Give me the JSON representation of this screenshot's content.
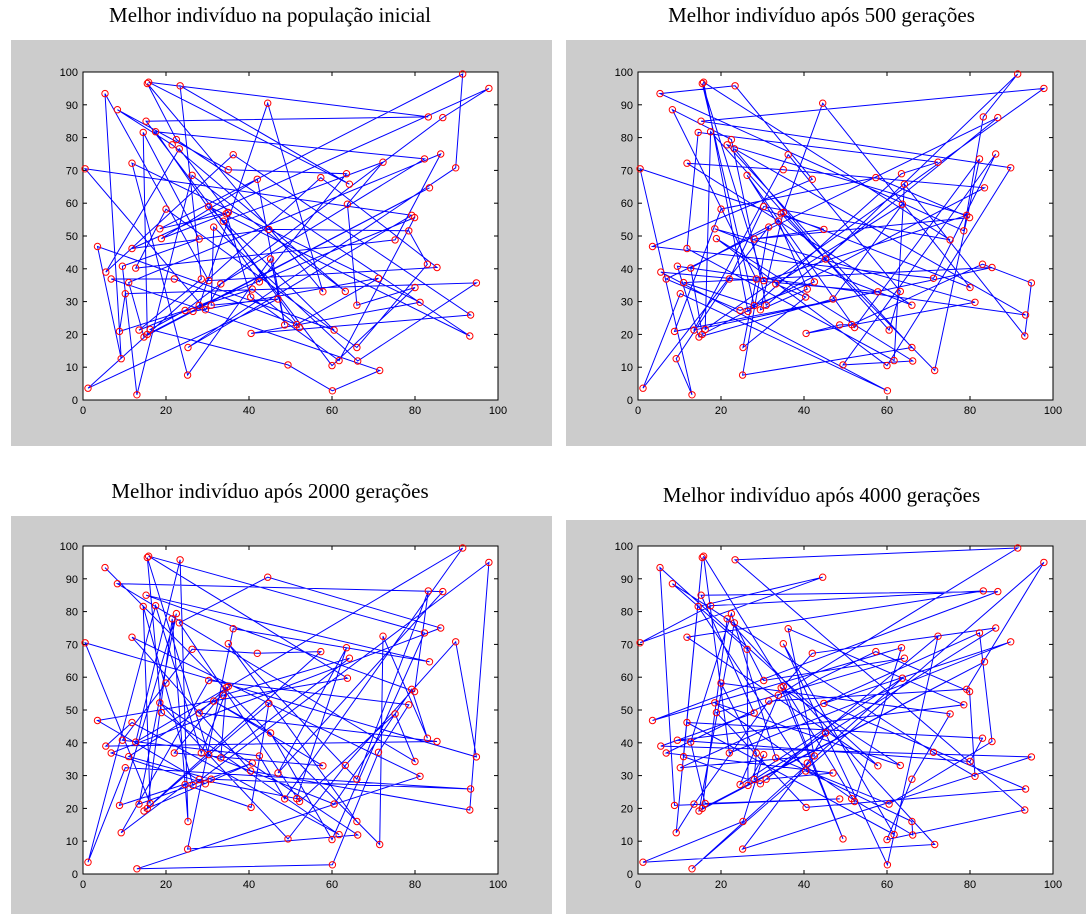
{
  "chart_data": [
    {
      "type": "line",
      "title": "Melhor indivíduo na população inicial",
      "xlim": [
        0,
        100
      ],
      "ylim": [
        0,
        100
      ],
      "xticks": [
        "0",
        "20",
        "40",
        "60",
        "80",
        "100"
      ],
      "yticks": [
        "0",
        "10",
        "20",
        "30",
        "40",
        "50",
        "60",
        "70",
        "80",
        "90",
        "100"
      ],
      "grid": false,
      "line_color": "#0000ff",
      "marker_color": "#ff0000",
      "tour_order": [
        0,
        52,
        38,
        21,
        11,
        86,
        31,
        63,
        72,
        8,
        89,
        30,
        14,
        55,
        45,
        70,
        28,
        91,
        24,
        2,
        80,
        49,
        36,
        19,
        60,
        79,
        20,
        46,
        98,
        32,
        53,
        65,
        84,
        27,
        43,
        57,
        7,
        96,
        48,
        71,
        4,
        82,
        26,
        56,
        42,
        15,
        76,
        85,
        99,
        5,
        37,
        88,
        61,
        9,
        12,
        50,
        67,
        94,
        41,
        90,
        73,
        35,
        6,
        22,
        83,
        81,
        44,
        92,
        87,
        59,
        95,
        13,
        77,
        17,
        47,
        29,
        97,
        40,
        66,
        54,
        18,
        58,
        51,
        25,
        33,
        68,
        10,
        78,
        23,
        62,
        75,
        39,
        64,
        69,
        3,
        1,
        93,
        16,
        34,
        74
      ]
    },
    {
      "type": "line",
      "title": "Melhor indivíduo após 500 gerações",
      "xlim": [
        0,
        100
      ],
      "ylim": [
        0,
        100
      ],
      "xticks": [
        "0",
        "20",
        "40",
        "60",
        "80",
        "100"
      ],
      "yticks": [
        "0",
        "10",
        "20",
        "30",
        "40",
        "50",
        "60",
        "70",
        "80",
        "90",
        "100"
      ],
      "grid": false,
      "line_color": "#0000ff",
      "marker_color": "#ff0000",
      "tour_order": [
        0,
        23,
        37,
        22,
        9,
        54,
        46,
        73,
        3,
        43,
        68,
        77,
        49,
        20,
        12,
        4,
        29,
        6,
        28,
        30,
        14,
        86,
        84,
        55,
        69,
        25,
        33,
        66,
        57,
        96,
        74,
        31,
        41,
        65,
        2,
        81,
        16,
        7,
        62,
        1,
        59,
        83,
        95,
        56,
        50,
        64,
        60,
        38,
        80,
        34,
        27,
        42,
        51,
        78,
        89,
        63,
        70,
        11,
        98,
        47,
        5,
        79,
        91,
        88,
        35,
        18,
        92,
        82,
        24,
        53,
        21,
        32,
        13,
        87,
        93,
        61,
        75,
        8,
        19,
        85,
        58,
        90,
        67,
        99,
        52,
        39,
        97,
        45,
        26,
        15,
        71,
        44,
        72,
        94,
        48,
        40,
        76,
        36,
        10,
        17
      ]
    },
    {
      "type": "line",
      "title": "Melhor indivíduo após 2000 gerações",
      "xlim": [
        0,
        100
      ],
      "ylim": [
        0,
        100
      ],
      "xticks": [
        "0",
        "20",
        "40",
        "60",
        "80",
        "100"
      ],
      "yticks": [
        "0",
        "10",
        "20",
        "30",
        "40",
        "50",
        "60",
        "70",
        "80",
        "90",
        "100"
      ],
      "grid": false,
      "line_color": "#0000ff",
      "marker_color": "#ff0000",
      "tour_order": [
        0,
        87,
        68,
        73,
        13,
        12,
        80,
        55,
        14,
        23,
        44,
        35,
        47,
        9,
        37,
        59,
        30,
        17,
        51,
        76,
        91,
        62,
        40,
        78,
        1,
        28,
        11,
        66,
        79,
        38,
        39,
        33,
        96,
        19,
        50,
        48,
        90,
        6,
        3,
        42,
        95,
        64,
        65,
        54,
        7,
        63,
        41,
        18,
        83,
        74,
        88,
        27,
        46,
        16,
        53,
        70,
        26,
        94,
        22,
        31,
        60,
        93,
        15,
        71,
        89,
        56,
        58,
        57,
        20,
        34,
        2,
        10,
        85,
        72,
        77,
        49,
        24,
        67,
        99,
        61,
        52,
        29,
        43,
        81,
        5,
        97,
        69,
        84,
        98,
        36,
        32,
        25,
        8,
        45,
        82,
        86,
        92,
        75,
        21,
        4
      ]
    },
    {
      "type": "line",
      "title": "Melhor indivíduo após 4000 gerações",
      "xlim": [
        0,
        100
      ],
      "ylim": [
        0,
        100
      ],
      "xticks": [
        "0",
        "20",
        "40",
        "60",
        "80",
        "100"
      ],
      "yticks": [
        "0",
        "10",
        "20",
        "30",
        "40",
        "50",
        "60",
        "70",
        "80",
        "90",
        "100"
      ],
      "grid": false,
      "line_color": "#0000ff",
      "marker_color": "#ff0000",
      "tour_order": [
        0,
        41,
        68,
        80,
        97,
        82,
        6,
        86,
        75,
        2,
        92,
        31,
        91,
        18,
        90,
        60,
        40,
        54,
        84,
        53,
        12,
        79,
        11,
        57,
        59,
        27,
        23,
        13,
        52,
        26,
        19,
        37,
        67,
        58,
        74,
        70,
        96,
        45,
        4,
        72,
        10,
        32,
        95,
        88,
        3,
        7,
        46,
        22,
        21,
        17,
        89,
        30,
        24,
        20,
        9,
        63,
        51,
        25,
        33,
        39,
        81,
        15,
        38,
        99,
        73,
        62,
        64,
        35,
        14,
        36,
        76,
        83,
        42,
        56,
        43,
        44,
        69,
        49,
        77,
        29,
        65,
        78,
        47,
        8,
        1,
        71,
        16,
        85,
        61,
        34,
        50,
        66,
        87,
        28,
        48,
        5,
        94,
        55,
        98,
        93
      ]
    }
  ],
  "cities": {
    "x": [
      0.5,
      42.5,
      34.5,
      63.5,
      94.8,
      5.3,
      51.5,
      52.2,
      36.2,
      30.3,
      28.0,
      91.5,
      93.2,
      97.8,
      81.2,
      1.2,
      82.3,
      44.8,
      86.2,
      13.5,
      64.2,
      89.8,
      22.0,
      13.0,
      18.9,
      83.5,
      31.5,
      63.7,
      48.6,
      83.0,
      40.5,
      35.0,
      15.2,
      15.5,
      33.2,
      71.2,
      79.9,
      9.2,
      25.3,
      21.5,
      20.0,
      44.5,
      47.0,
      72.3,
      60.1,
      25.2,
      15.8,
      78.5,
      8.8,
      61.7,
      22.5,
      14.7,
      79.2,
      60.0,
      75.2,
      11.8,
      30.9,
      33.8,
      11.0,
      24.6,
      28.5,
      60.5,
      26.3,
      23.2,
      8.3,
      80.0,
      12.7,
      15.5,
      14.5,
      35.0,
      45.2,
      10.2,
      5.5,
      26.5,
      29.5,
      63.2,
      57.3,
      11.8,
      9.5,
      23.4,
      40.4,
      71.5,
      66.2,
      6.8,
      66.0,
      85.3,
      18.5,
      16.2,
      3.5,
      93.4,
      28.0,
      42.0,
      49.4,
      17.5,
      57.8,
      86.7,
      40.8,
      66.0,
      83.2,
      30.3
    ],
    "y": [
      70.5,
      36.0,
      56.8,
      69.0,
      35.7,
      93.4,
      23.0,
      22.1,
      74.8,
      59.0,
      49.1,
      99.4,
      19.5,
      95.0,
      29.8,
      3.6,
      73.5,
      52.0,
      75.0,
      21.3,
      65.8,
      70.8,
      36.9,
      1.6,
      49.2,
      64.7,
      52.7,
      59.7,
      22.9,
      41.4,
      20.3,
      57.2,
      85.0,
      20.0,
      35.4,
      37.1,
      55.6,
      12.6,
      16.0,
      77.8,
      58.2,
      90.5,
      30.8,
      72.5,
      2.8,
      7.6,
      96.9,
      51.6,
      20.9,
      12.0,
      79.4,
      19.2,
      56.3,
      10.5,
      48.8,
      72.2,
      28.9,
      54.5,
      35.8,
      27.3,
      36.9,
      21.3,
      68.5,
      76.6,
      88.5,
      34.3,
      40.2,
      96.5,
      81.6,
      70.2,
      43.0,
      32.4,
      39.0,
      27.0,
      27.5,
      33.1,
      67.8,
      46.2,
      40.8,
      95.8,
      31.4,
      9.0,
      11.9,
      36.9,
      28.9,
      40.4,
      52.2,
      21.5,
      46.8,
      25.9,
      28.8,
      67.3,
      10.7,
      81.8,
      33.0,
      86.1,
      33.8,
      16.0,
      86.3,
      36.4
    ]
  }
}
